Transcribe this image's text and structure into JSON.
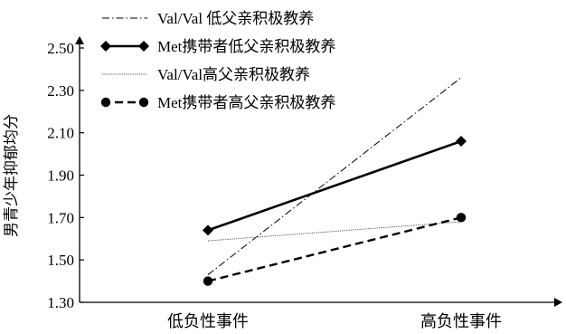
{
  "chart_data": {
    "type": "line",
    "categories": [
      "低负性事件",
      "高负性事件"
    ],
    "ylabel": "男青少年抑郁均分",
    "xlabel": "",
    "ylim": [
      1.3,
      2.5
    ],
    "yticks": [
      "1.30",
      "1.50",
      "1.70",
      "1.90",
      "2.10",
      "2.30",
      "2.50"
    ],
    "legend_position": "top",
    "series": [
      {
        "name": "Val/Val 低父亲积极教养",
        "values": [
          1.43,
          2.36
        ],
        "style": "dashdot",
        "marker": "none",
        "color": "#000000"
      },
      {
        "name": "Met携带者低父亲积极教养",
        "values": [
          1.64,
          2.06
        ],
        "style": "solid-bold",
        "marker": "diamond",
        "color": "#000000"
      },
      {
        "name": "Val/Val高父亲积极教养",
        "values": [
          1.59,
          1.68
        ],
        "style": "dotted",
        "marker": "none",
        "color": "#555555"
      },
      {
        "name": "Met携带者高父亲积极教养",
        "values": [
          1.4,
          1.7
        ],
        "style": "dashed-bold",
        "marker": "circle",
        "color": "#000000"
      }
    ]
  }
}
